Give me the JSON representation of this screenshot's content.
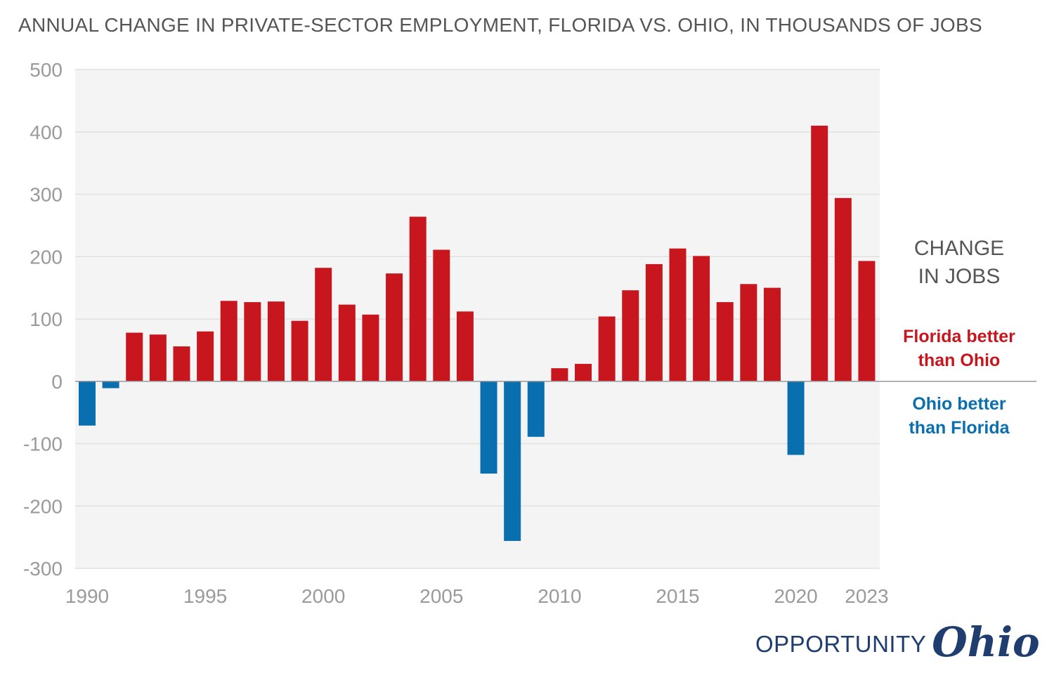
{
  "chart_data": {
    "type": "bar",
    "title": "ANNUAL CHANGE IN PRIVATE-SECTOR EMPLOYMENT, FLORIDA VS. OHIO, IN THOUSANDS OF JOBS",
    "xlabel": "",
    "ylabel": "",
    "ylim": [
      -300,
      500
    ],
    "yticks": [
      "500",
      "400",
      "300",
      "200",
      "100",
      "0",
      "-100",
      "-200",
      "-300"
    ],
    "ytick_values": [
      500,
      400,
      300,
      200,
      100,
      0,
      -100,
      -200,
      -300
    ],
    "xtick_labels": [
      "1990",
      "1995",
      "2000",
      "2005",
      "2010",
      "2015",
      "2020",
      "2023"
    ],
    "xtick_years": [
      1990,
      1995,
      2000,
      2005,
      2010,
      2015,
      2020,
      2023
    ],
    "grid": true,
    "categories": [
      1990,
      1991,
      1992,
      1993,
      1994,
      1995,
      1996,
      1997,
      1998,
      1999,
      2000,
      2001,
      2002,
      2003,
      2004,
      2005,
      2006,
      2007,
      2008,
      2009,
      2010,
      2011,
      2012,
      2013,
      2014,
      2015,
      2016,
      2017,
      2018,
      2019,
      2020,
      2021,
      2022,
      2023
    ],
    "values": [
      -71,
      -11,
      78,
      75,
      56,
      80,
      129,
      127,
      128,
      97,
      182,
      123,
      107,
      173,
      264,
      211,
      112,
      -148,
      -256,
      -89,
      21,
      28,
      104,
      146,
      188,
      213,
      201,
      127,
      156,
      150,
      -118,
      410,
      294,
      193
    ],
    "colors": {
      "positive": "#c8161e",
      "negative": "#0a6fae"
    },
    "side_title": [
      "CHANGE",
      "IN JOBS"
    ],
    "positive_label": [
      "Florida better",
      "than Ohio"
    ],
    "negative_label": [
      "Ohio better",
      "than Florida"
    ]
  },
  "colors": {
    "plot_background": "#f4f4f4",
    "grid": "#e0e0e0",
    "zero_line": "#999999",
    "title_text": "#555555",
    "tick_text": "#9a9a9a",
    "logo": "#1f3d6f"
  },
  "logo": {
    "word": "OPPORTUNITY",
    "script": "Ohio"
  }
}
